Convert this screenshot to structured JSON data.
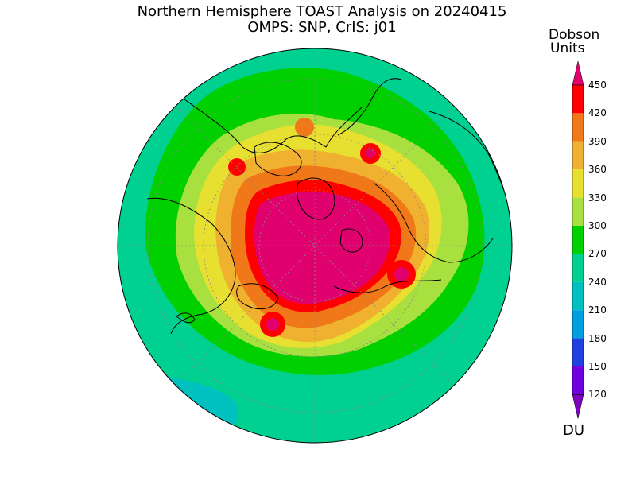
{
  "title": {
    "line1": "Northern Hemisphere TOAST Analysis on 20240415",
    "line2": "OMPS: SNP, CrIS: j01"
  },
  "colorbar": {
    "title_line1": "Dobson",
    "title_line2": "Units",
    "unit_label": "DU",
    "levels": [
      "450",
      "420",
      "390",
      "360",
      "330",
      "300",
      "270",
      "240",
      "210",
      "180",
      "150",
      "120"
    ],
    "colors": {
      "c450": "#e0006e",
      "c420": "#ff0000",
      "c390": "#f07818",
      "c360": "#f0b030",
      "c330": "#e8e030",
      "c300": "#a8e040",
      "c270": "#00d000",
      "c240": "#00d090",
      "c210": "#00c0c0",
      "c180": "#00a0e0",
      "c150": "#2040e0",
      "c120": "#7000e0",
      "below": "#8000c0"
    }
  },
  "map": {
    "projection": "north-polar-stereographic",
    "fills": {
      "ocean_base": "#00d090",
      "band_270": "#00d000",
      "band_300": "#a8e040",
      "band_330": "#e8e030",
      "band_360": "#f0b030",
      "band_390": "#f07818",
      "band_420": "#ff0000",
      "band_450": "#e0006e",
      "low_210": "#00c0c0"
    }
  }
}
